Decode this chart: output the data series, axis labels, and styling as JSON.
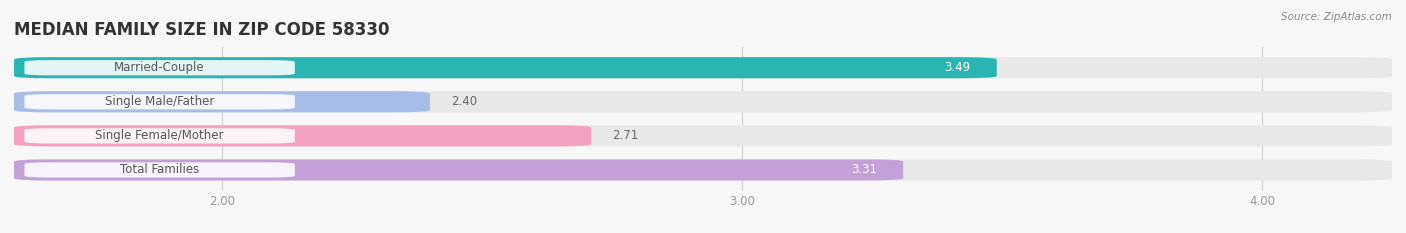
{
  "title": "MEDIAN FAMILY SIZE IN ZIP CODE 58330",
  "source": "Source: ZipAtlas.com",
  "categories": [
    "Married-Couple",
    "Single Male/Father",
    "Single Female/Mother",
    "Total Families"
  ],
  "values": [
    3.49,
    2.4,
    2.71,
    3.31
  ],
  "bar_colors": [
    "#2ab5b2",
    "#a8bce8",
    "#f4a0c0",
    "#c4a0d8"
  ],
  "xlim": [
    1.6,
    4.25
  ],
  "xticks": [
    2.0,
    3.0,
    4.0
  ],
  "xtick_labels": [
    "2.00",
    "3.00",
    "4.00"
  ],
  "label_fontsize": 8.5,
  "value_fontsize": 8.5,
  "title_fontsize": 12,
  "bar_height": 0.62,
  "fig_bg_color": "#f7f7f7",
  "bar_bg_color": "#e8e8e8",
  "value_inside_color": "white",
  "value_outside_color": "#666666",
  "label_text_color": "#555555",
  "grid_color": "#d0d0d0",
  "source_color": "#888888",
  "title_color": "#333333"
}
